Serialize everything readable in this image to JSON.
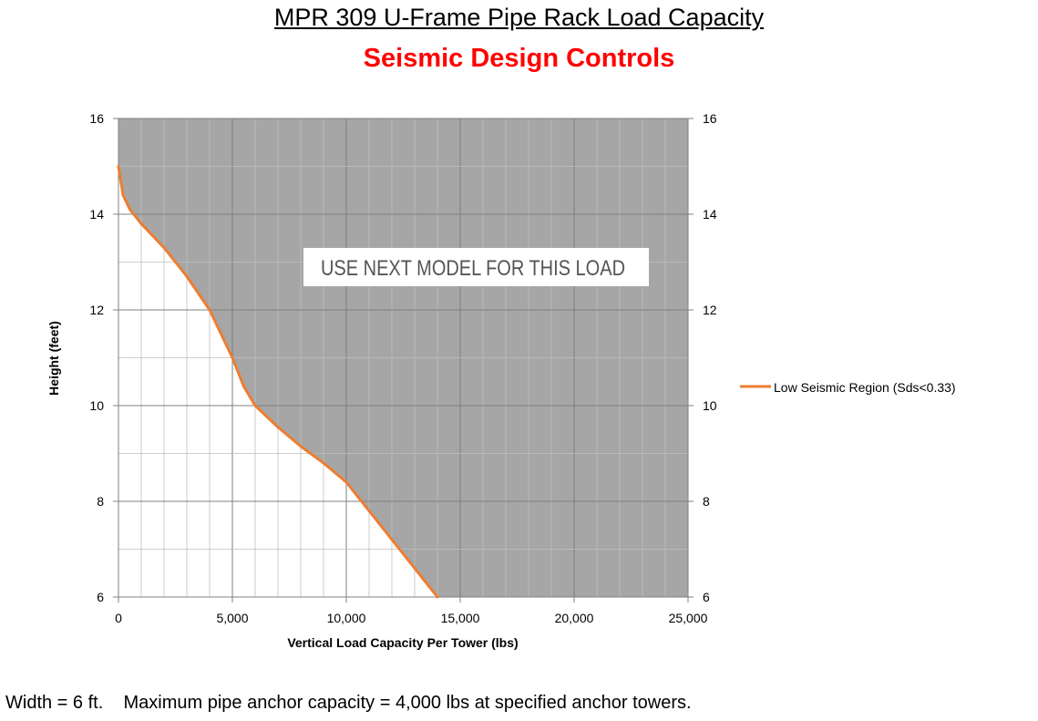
{
  "header": {
    "title": "MPR 309  U-Frame Pipe Rack Load Capacity",
    "subtitle": "Seismic Design Controls"
  },
  "footer": {
    "note": "Width = 6 ft.    Maximum pipe anchor capacity = 4,000 lbs at specified anchor towers."
  },
  "colors": {
    "shade": "#a6a6a6",
    "series": "#ed7d31",
    "subtitle": "#ff0000"
  },
  "chart_data": {
    "type": "line",
    "title": "MPR 309  U-Frame Pipe Rack Load Capacity",
    "subtitle": "Seismic Design Controls",
    "xlabel": "Vertical Load Capacity Per Tower (lbs)",
    "ylabel": "Height (feet)",
    "xlim": [
      0,
      25000
    ],
    "ylim": [
      6,
      16
    ],
    "x_ticks": [
      "0",
      "5,000",
      "10,000",
      "15,000",
      "20,000",
      "25,000"
    ],
    "y_ticks": [
      "6",
      "8",
      "10",
      "12",
      "14",
      "16"
    ],
    "grid": true,
    "legend_position": "right",
    "shaded_region": "above-curve",
    "annotation": "USE NEXT MODEL FOR THIS LOAD",
    "series": [
      {
        "name": "Low Seismic Region (Sds<0.33)",
        "x": [
          0,
          200,
          500,
          1000,
          2000,
          3000,
          4000,
          4500,
          5000,
          5500,
          6000,
          7000,
          8000,
          9000,
          10000,
          11000,
          12000,
          13000,
          14000
        ],
        "y": [
          15.0,
          14.4,
          14.1,
          13.8,
          13.3,
          12.7,
          12.0,
          11.5,
          11.0,
          10.4,
          10.0,
          9.55,
          9.15,
          8.8,
          8.4,
          7.8,
          7.2,
          6.6,
          6.0
        ]
      }
    ]
  }
}
